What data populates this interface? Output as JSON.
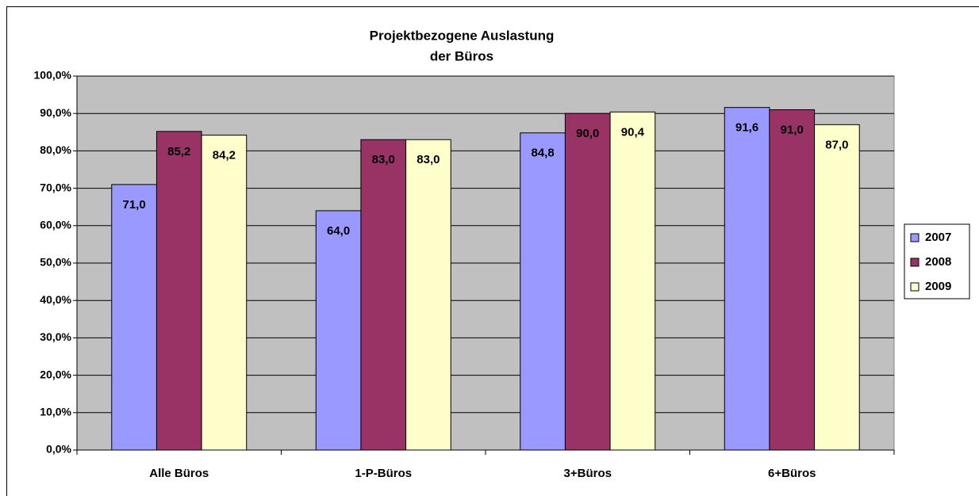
{
  "chart_data": {
    "type": "bar",
    "title": [
      "Projektbezogene Auslastung",
      "der Büros"
    ],
    "categories": [
      "Alle Büros",
      "1-P-Büros",
      "3+Büros",
      "6+Büros"
    ],
    "series": [
      {
        "name": "2007",
        "color": "#9999ff",
        "values": [
          71.0,
          64.0,
          84.8,
          91.6
        ],
        "value_labels": [
          "71,0",
          "64,0",
          "84,8",
          "91,6"
        ]
      },
      {
        "name": "2008",
        "color": "#993366",
        "values": [
          85.2,
          83.0,
          90.0,
          91.0
        ],
        "value_labels": [
          "85,2",
          "83,0",
          "90,0",
          "91,0"
        ]
      },
      {
        "name": "2009",
        "color": "#ffffcc",
        "values": [
          84.2,
          83.0,
          90.4,
          87.0
        ],
        "value_labels": [
          "84,2",
          "83,0",
          "90,4",
          "87,0"
        ]
      }
    ],
    "ylim": [
      0,
      100
    ],
    "yticks": [
      {
        "value": 0,
        "label": "0,0%"
      },
      {
        "value": 10,
        "label": "10,0%"
      },
      {
        "value": 20,
        "label": "20,0%"
      },
      {
        "value": 30,
        "label": "30,0%"
      },
      {
        "value": 40,
        "label": "40,0%"
      },
      {
        "value": 50,
        "label": "50,0%"
      },
      {
        "value": 60,
        "label": "60,0%"
      },
      {
        "value": 70,
        "label": "70,0%"
      },
      {
        "value": 80,
        "label": "80,0%"
      },
      {
        "value": 90,
        "label": "90,0%"
      },
      {
        "value": 100,
        "label": "100,0%"
      }
    ],
    "grid": true,
    "legend": "right",
    "plot_background": "#c0c0c0"
  }
}
